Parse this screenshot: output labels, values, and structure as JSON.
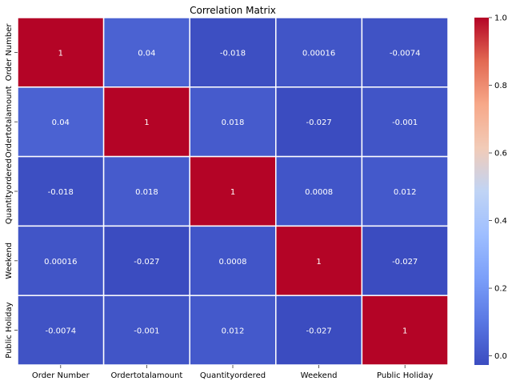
{
  "chart_data": {
    "type": "heatmap",
    "title": "Correlation Matrix",
    "xlabel": "",
    "ylabel": "",
    "x_categories": [
      "Order Number",
      "Ordertotalamount",
      "Quantityordered",
      "Weekend",
      "Public Holiday"
    ],
    "y_categories": [
      "Order Number",
      "Ordertotalamount",
      "Quantityordered",
      "Weekend",
      "Public Holiday"
    ],
    "values": [
      [
        1,
        0.04,
        -0.018,
        0.00016,
        -0.0074
      ],
      [
        0.04,
        1,
        0.018,
        -0.027,
        -0.001
      ],
      [
        -0.018,
        0.018,
        1,
        0.0008,
        0.012
      ],
      [
        0.00016,
        -0.027,
        0.0008,
        1,
        -0.027
      ],
      [
        -0.0074,
        -0.001,
        0.012,
        -0.027,
        1
      ]
    ],
    "cell_labels": [
      [
        "1",
        "0.04",
        "-0.018",
        "0.00016",
        "-0.0074"
      ],
      [
        "0.04",
        "1",
        "0.018",
        "-0.027",
        "-0.001"
      ],
      [
        "-0.018",
        "0.018",
        "1",
        "0.0008",
        "0.012"
      ],
      [
        "0.00016",
        "-0.027",
        "0.0008",
        "1",
        "-0.027"
      ],
      [
        "-0.0074",
        "-0.001",
        "0.012",
        "-0.027",
        "1"
      ]
    ],
    "colorbar": {
      "colormap": "coolwarm",
      "range": [
        -0.027,
        1.0
      ],
      "ticks": [
        0.0,
        0.2,
        0.4,
        0.6,
        0.8,
        1.0
      ],
      "tick_labels": [
        "0.0",
        "0.2",
        "0.4",
        "0.6",
        "0.8",
        "1.0"
      ]
    }
  }
}
